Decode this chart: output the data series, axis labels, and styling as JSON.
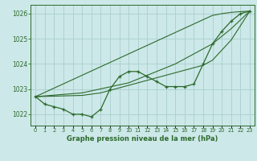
{
  "title": "Graphe pression niveau de la mer (hPa)",
  "background_color": "#cce8e8",
  "grid_color": "#aacece",
  "line_color": "#2d6a2d",
  "x_labels": [
    "0",
    "1",
    "2",
    "3",
    "4",
    "5",
    "6",
    "7",
    "8",
    "9",
    "10",
    "11",
    "12",
    "13",
    "14",
    "15",
    "16",
    "17",
    "18",
    "19",
    "20",
    "21",
    "22",
    "23"
  ],
  "ylim": [
    1021.55,
    1026.35
  ],
  "yticks": [
    1022,
    1023,
    1024,
    1025,
    1026
  ],
  "series": {
    "main": [
      1022.7,
      1022.4,
      1022.3,
      1022.2,
      1022.0,
      1022.0,
      1021.9,
      1022.2,
      1023.0,
      1023.5,
      1023.7,
      1023.7,
      1023.5,
      1023.3,
      1023.1,
      1023.1,
      1023.1,
      1023.2,
      1024.0,
      1024.8,
      1025.3,
      1025.7,
      1026.0,
      1026.1
    ],
    "line1": [
      1022.7,
      1022.87,
      1023.04,
      1023.21,
      1023.38,
      1023.55,
      1023.72,
      1023.89,
      1024.06,
      1024.23,
      1024.4,
      1024.57,
      1024.74,
      1024.91,
      1025.08,
      1025.25,
      1025.42,
      1025.59,
      1025.76,
      1025.93,
      1026.0,
      1026.05,
      1026.08,
      1026.1
    ],
    "line2": [
      1022.7,
      1022.73,
      1022.76,
      1022.79,
      1022.82,
      1022.85,
      1022.93,
      1023.01,
      1023.09,
      1023.17,
      1023.25,
      1023.4,
      1023.55,
      1023.7,
      1023.85,
      1024.0,
      1024.2,
      1024.4,
      1024.6,
      1024.8,
      1025.1,
      1025.4,
      1025.75,
      1026.1
    ],
    "line3": [
      1022.7,
      1022.71,
      1022.72,
      1022.73,
      1022.74,
      1022.75,
      1022.8,
      1022.85,
      1022.95,
      1023.05,
      1023.15,
      1023.25,
      1023.35,
      1023.45,
      1023.55,
      1023.65,
      1023.75,
      1023.85,
      1023.95,
      1024.15,
      1024.55,
      1024.95,
      1025.52,
      1026.1
    ]
  }
}
